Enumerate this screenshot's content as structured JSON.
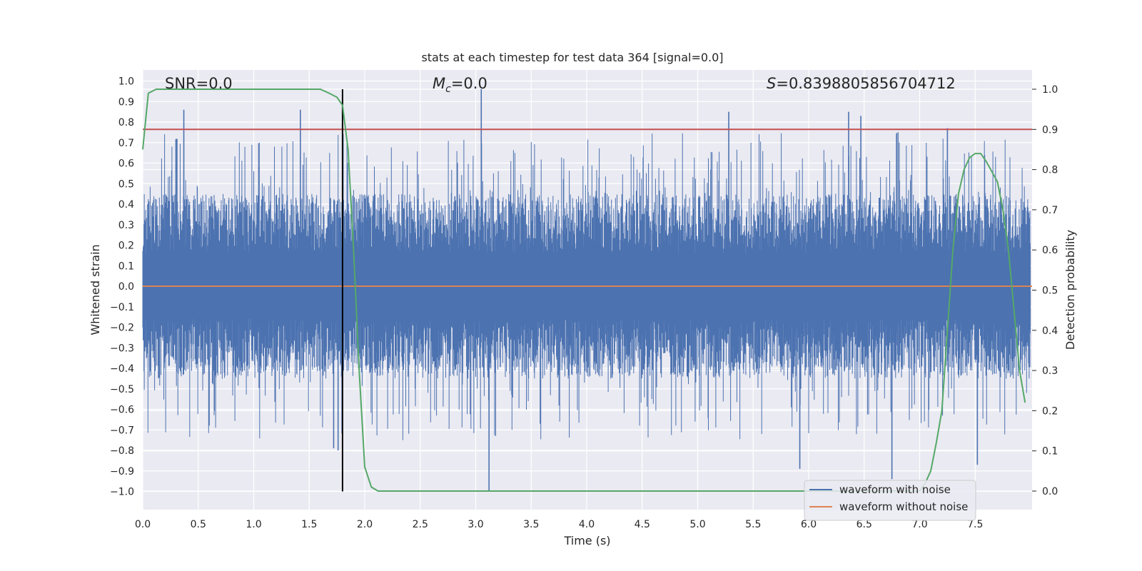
{
  "chart_data": {
    "type": "line",
    "title": "stats at each timestep for test data 364 [signal=0.0]",
    "xlabel": "Time (s)",
    "ylabel_left": "Whitened strain",
    "ylabel_right": "Detection probability",
    "xlim": [
      0.0,
      8.0
    ],
    "ylim_left": [
      -1.1,
      1.05
    ],
    "ylim_right": [
      -0.05,
      1.05
    ],
    "x_ticks": [
      "0.0",
      "0.5",
      "1.0",
      "1.5",
      "2.0",
      "2.5",
      "3.0",
      "3.5",
      "4.0",
      "4.5",
      "5.0",
      "5.5",
      "6.0",
      "6.5",
      "7.0",
      "7.5"
    ],
    "y_ticks_left": [
      "1.0",
      "0.9",
      "0.8",
      "0.7",
      "0.6",
      "0.5",
      "0.4",
      "0.3",
      "0.2",
      "0.1",
      "0.0",
      "−0.1",
      "−0.2",
      "−0.3",
      "−0.4",
      "−0.5",
      "−0.6",
      "−0.7",
      "−0.8",
      "−0.9",
      "−1.0"
    ],
    "y_ticks_right": [
      "1.0",
      "0.9",
      "0.8",
      "0.7",
      "0.6",
      "0.5",
      "0.4",
      "0.3",
      "0.2",
      "0.1",
      "0.0"
    ],
    "grid": true,
    "legend_position": "lower-right",
    "annotations": {
      "snr": "SNR=0.0",
      "mc_symbol": "M",
      "mc_sub": "c",
      "mc_value": "=0.0",
      "s_symbol": "S",
      "s_value": "=0.8398805856704712"
    },
    "marker_time": 1.8,
    "threshold_probability": 0.9,
    "series": [
      {
        "name": "waveform with noise",
        "axis": "left",
        "color": "#4c72b0",
        "envelope_positive": 0.45,
        "envelope_negative": -0.45,
        "peaks": [
          {
            "x": 0.37,
            "y": 0.86
          },
          {
            "x": 1.42,
            "y": 0.86
          },
          {
            "x": 1.72,
            "y": -0.79
          },
          {
            "x": 1.76,
            "y": -0.8
          },
          {
            "x": 3.05,
            "y": 0.96
          },
          {
            "x": 3.12,
            "y": -1.0
          },
          {
            "x": 5.28,
            "y": 0.85
          },
          {
            "x": 5.92,
            "y": -0.89
          },
          {
            "x": 6.36,
            "y": 0.85
          },
          {
            "x": 6.47,
            "y": 0.83
          },
          {
            "x": 6.75,
            "y": -0.94
          },
          {
            "x": 7.25,
            "y": 0.77
          },
          {
            "x": 7.52,
            "y": -0.87
          }
        ]
      },
      {
        "name": "waveform without noise",
        "axis": "left",
        "color": "#dd8452",
        "y": 0.0
      },
      {
        "name": "",
        "axis": "right",
        "color": "#55a868",
        "x": [
          0.0,
          0.05,
          0.12,
          0.3,
          0.6,
          1.0,
          1.4,
          1.6,
          1.68,
          1.75,
          1.8,
          1.85,
          1.9,
          1.95,
          2.0,
          2.06,
          2.12,
          2.2,
          2.5,
          3.0,
          4.0,
          5.0,
          6.0,
          6.8,
          7.0,
          7.05,
          7.1,
          7.15,
          7.2,
          7.25,
          7.3,
          7.35,
          7.4,
          7.45,
          7.5,
          7.55,
          7.6,
          7.7,
          7.75,
          7.8,
          7.85,
          7.9,
          7.95
        ],
        "y": [
          0.85,
          0.99,
          1.0,
          1.0,
          1.0,
          1.0,
          1.0,
          1.0,
          0.99,
          0.98,
          0.96,
          0.85,
          0.6,
          0.3,
          0.06,
          0.01,
          0.0,
          0.0,
          0.0,
          0.0,
          0.0,
          0.0,
          0.0,
          0.0,
          0.0,
          0.02,
          0.05,
          0.12,
          0.2,
          0.4,
          0.6,
          0.74,
          0.8,
          0.83,
          0.84,
          0.84,
          0.82,
          0.77,
          0.7,
          0.6,
          0.45,
          0.3,
          0.22
        ]
      }
    ],
    "legend": [
      "waveform with noise",
      "waveform without noise"
    ]
  }
}
